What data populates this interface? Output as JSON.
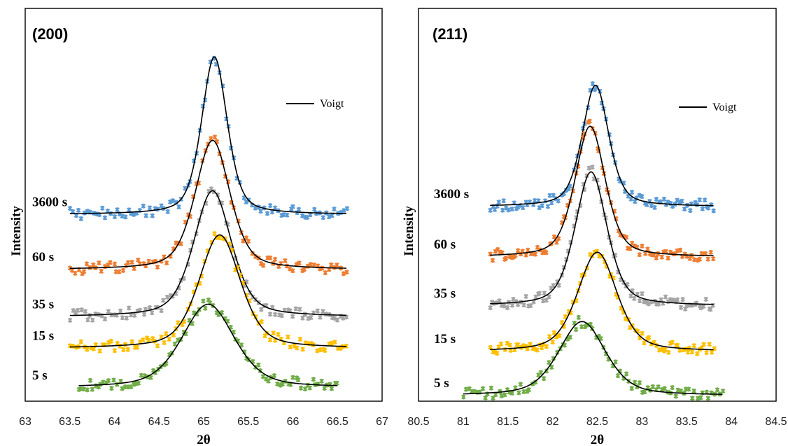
{
  "chart_data": [
    {
      "type": "scatter",
      "title": "(200)",
      "xlabel": "2θ",
      "ylabel": "Intensity",
      "xlim": [
        63,
        67
      ],
      "xticks": [
        "63",
        "63.5",
        "64",
        "64.5",
        "65",
        "65.5",
        "66",
        "66.5",
        "67"
      ],
      "grid": false,
      "legend": {
        "label": "Voigt",
        "placement": "top-right"
      },
      "fit_line": "Voigt",
      "colors": {
        "3600 s": "#5b9bd5",
        "60 s": "#ed7d31",
        "35 s": "#a5a5a5",
        "15 s": "#ffc000",
        "5 s": "#70ad47",
        "fit": "#000000"
      },
      "series": [
        {
          "name": "3600 s",
          "x_range": [
            63.5,
            66.6
          ],
          "peak_x": 65.12,
          "baseline": 1.15,
          "peak_intensity": 1.0,
          "fwhm": 0.34
        },
        {
          "name": "60 s",
          "x_range": [
            63.5,
            66.6
          ],
          "peak_x": 65.1,
          "baseline": 0.8,
          "peak_intensity": 0.82,
          "fwhm": 0.46
        },
        {
          "name": "35 s",
          "x_range": [
            63.5,
            66.6
          ],
          "peak_x": 65.1,
          "baseline": 0.5,
          "peak_intensity": 0.8,
          "fwhm": 0.5
        },
        {
          "name": "15 s",
          "x_range": [
            63.5,
            66.6
          ],
          "peak_x": 65.18,
          "baseline": 0.3,
          "peak_intensity": 0.72,
          "fwhm": 0.55
        },
        {
          "name": "5 s",
          "x_range": [
            63.6,
            66.5
          ],
          "peak_x": 65.05,
          "baseline": 0.05,
          "peak_intensity": 0.53,
          "fwhm": 0.7
        }
      ]
    },
    {
      "type": "scatter",
      "title": "(211)",
      "xlabel": "2θ",
      "ylabel": "Intensity",
      "xlim": [
        80.5,
        84.5
      ],
      "xticks": [
        "80.5",
        "81",
        "81.5",
        "82",
        "82.5",
        "83",
        "83.5",
        "84",
        "84.5"
      ],
      "grid": false,
      "legend": {
        "label": "Voigt",
        "placement": "top-right"
      },
      "fit_line": "Voigt",
      "colors": {
        "3600 s": "#5b9bd5",
        "60 s": "#ed7d31",
        "35 s": "#a5a5a5",
        "15 s": "#ffc000",
        "5 s": "#70ad47",
        "fit": "#000000"
      },
      "series": [
        {
          "name": "3600 s",
          "x_range": [
            81.3,
            83.8
          ],
          "peak_x": 82.48,
          "baseline": 1.2,
          "peak_intensity": 0.77,
          "fwhm": 0.35
        },
        {
          "name": "60 s",
          "x_range": [
            81.3,
            83.8
          ],
          "peak_x": 82.42,
          "baseline": 0.88,
          "peak_intensity": 0.83,
          "fwhm": 0.4
        },
        {
          "name": "35 s",
          "x_range": [
            81.3,
            83.8
          ],
          "peak_x": 82.43,
          "baseline": 0.57,
          "peak_intensity": 0.85,
          "fwhm": 0.42
        },
        {
          "name": "15 s",
          "x_range": [
            81.3,
            83.8
          ],
          "peak_x": 82.5,
          "baseline": 0.28,
          "peak_intensity": 0.63,
          "fwhm": 0.52
        },
        {
          "name": "5 s",
          "x_range": [
            81.0,
            83.9
          ],
          "peak_x": 82.33,
          "baseline": 0.0,
          "peak_intensity": 0.47,
          "fwhm": 0.62
        }
      ]
    }
  ]
}
